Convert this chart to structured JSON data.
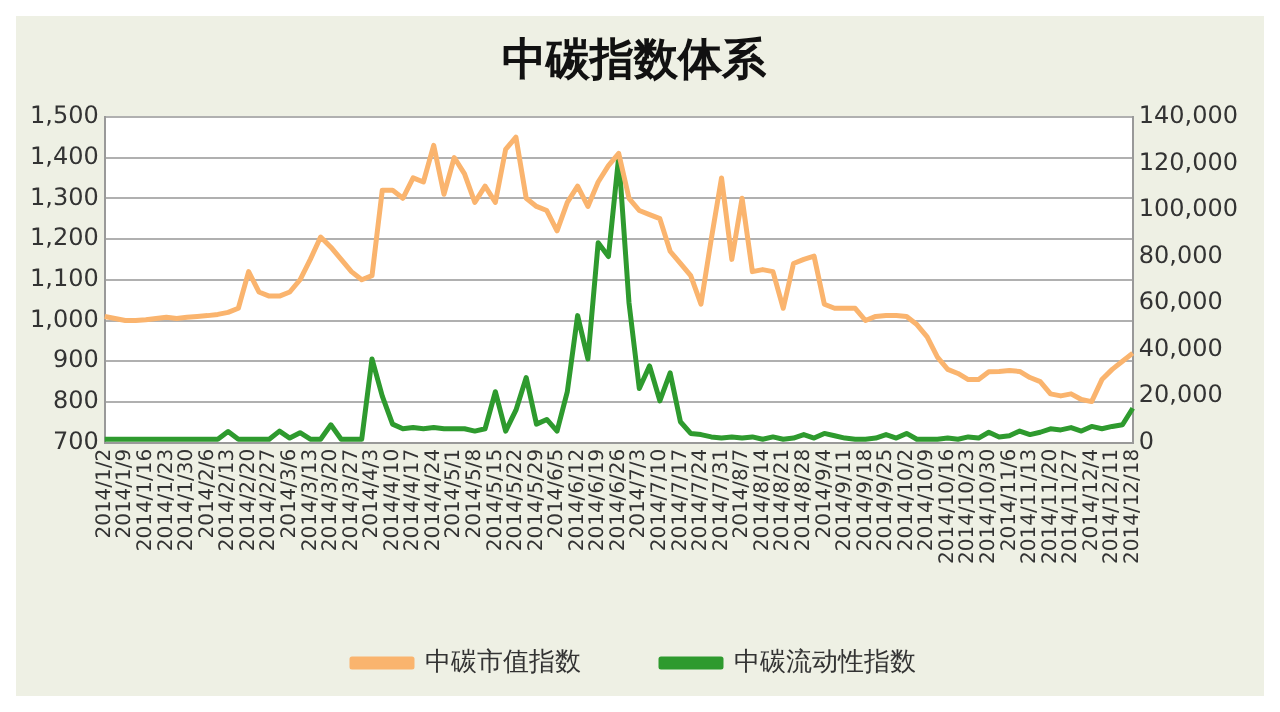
{
  "chart_data": {
    "type": "line",
    "title": "中碳指数体系",
    "categories": [
      "2014/1/2",
      null,
      "2014/1/9",
      null,
      "2014/1/16",
      null,
      "2014/1/23",
      null,
      "2014/1/30",
      null,
      "2014/2/6",
      null,
      "2014/2/13",
      null,
      "2014/2/20",
      null,
      "2014/2/27",
      null,
      "2014/3/6",
      null,
      "2014/3/13",
      null,
      "2014/3/20",
      null,
      "2014/3/27",
      null,
      "2014/4/3",
      null,
      "2014/4/10",
      null,
      "2014/4/17",
      null,
      "2014/4/24",
      null,
      "2014/5/1",
      null,
      "2014/5/8",
      null,
      "2014/5/15",
      null,
      "2014/5/22",
      null,
      "2014/5/29",
      null,
      "2014/6/5",
      null,
      "2014/6/12",
      null,
      "2014/6/19",
      null,
      "2014/6/26",
      null,
      "2014/7/3",
      null,
      "2014/7/10",
      null,
      "2014/7/17",
      null,
      "2014/7/24",
      null,
      "2014/7/31",
      null,
      "2014/8/7",
      null,
      "2014/8/14",
      null,
      "2014/8/21",
      null,
      "2014/8/28",
      null,
      "2014/9/4",
      null,
      "2014/9/11",
      null,
      "2014/9/18",
      null,
      "2014/9/25",
      null,
      "2014/10/2",
      null,
      "2014/10/9",
      null,
      "2014/10/16",
      null,
      "2014/10/23",
      null,
      "2014/10/30",
      null,
      "2014/11/6",
      null,
      "2014/11/13",
      null,
      "2014/11/20",
      null,
      "2014/11/27",
      null,
      "2014/12/4",
      null,
      "2014/12/11",
      null,
      "2014/12/18"
    ],
    "series": [
      {
        "name": "中碳市值指数",
        "color": "#fab46e",
        "values": [
          1010,
          1005,
          1000,
          1000,
          1002,
          1005,
          1008,
          1005,
          1008,
          1010,
          1012,
          1015,
          1020,
          1030,
          1120,
          1070,
          1060,
          1060,
          1070,
          1100,
          1150,
          1205,
          1180,
          1150,
          1120,
          1100,
          1110,
          1320,
          1320,
          1300,
          1350,
          1340,
          1430,
          1310,
          1400,
          1360,
          1290,
          1330,
          1290,
          1420,
          1450,
          1300,
          1280,
          1270,
          1220,
          1290,
          1330,
          1280,
          1340,
          1380,
          1410,
          1300,
          1270,
          1260,
          1250,
          1170,
          1140,
          1110,
          1040,
          1200,
          1350,
          1150,
          1300,
          1120,
          1125,
          1120,
          1030,
          1140,
          1150,
          1158,
          1040,
          1030,
          1030,
          1030,
          1000,
          1010,
          1012,
          1012,
          1010,
          990,
          960,
          910,
          880,
          870,
          855,
          855,
          874,
          875,
          877,
          875,
          860,
          850,
          820,
          815,
          820,
          806,
          801,
          855,
          880,
          900,
          920
        ]
      },
      {
        "name": "中碳流动性指数",
        "color": "#2e9a2e",
        "axis": "y2",
        "values": [
          1500,
          1500,
          1500,
          1500,
          1500,
          1500,
          1500,
          1500,
          1500,
          1500,
          1500,
          1500,
          4800,
          1500,
          1500,
          1500,
          1500,
          5000,
          2000,
          4300,
          1500,
          1500,
          7700,
          1500,
          1500,
          1500,
          36000,
          20000,
          8000,
          6000,
          6500,
          6000,
          6500,
          6000,
          6000,
          6000,
          5000,
          6000,
          21900,
          5000,
          14000,
          28000,
          8000,
          10000,
          5000,
          22000,
          54600,
          36000,
          85900,
          80000,
          122900,
          60000,
          23300,
          33000,
          18000,
          30000,
          9000,
          4000,
          3500,
          2500,
          2000,
          2500,
          2000,
          2500,
          1500,
          2500,
          1500,
          2000,
          3500,
          2000,
          4000,
          3000,
          2000,
          1500,
          1500,
          2000,
          3500,
          2000,
          4000,
          1500,
          1500,
          1500,
          2000,
          1500,
          2500,
          2000,
          4500,
          2500,
          3000,
          5000,
          3500,
          4500,
          6000,
          5500,
          6500,
          5000,
          7000,
          6000,
          7000,
          7700,
          14800
        ]
      }
    ],
    "ylim": [
      700,
      1500
    ],
    "yticks": [
      {
        "value": 700,
        "label": "700"
      },
      {
        "value": 800,
        "label": "800"
      },
      {
        "value": 900,
        "label": "900"
      },
      {
        "value": 1000,
        "label": "1,000"
      },
      {
        "value": 1100,
        "label": "1,100"
      },
      {
        "value": 1200,
        "label": "1,200"
      },
      {
        "value": 1300,
        "label": "1,300"
      },
      {
        "value": 1400,
        "label": "1,400"
      },
      {
        "value": 1500,
        "label": "1,500"
      }
    ],
    "y2lim": [
      0,
      140000
    ],
    "y2ticks": [
      {
        "value": 0,
        "label": "0"
      },
      {
        "value": 20000,
        "label": "20,000"
      },
      {
        "value": 40000,
        "label": "40,000"
      },
      {
        "value": 60000,
        "label": "60,000"
      },
      {
        "value": 80000,
        "label": "80,000"
      },
      {
        "value": 100000,
        "label": "100,000"
      },
      {
        "value": 120000,
        "label": "120,000"
      },
      {
        "value": 140000,
        "label": "140,000"
      }
    ],
    "grid": "y",
    "legend": "bottom"
  }
}
